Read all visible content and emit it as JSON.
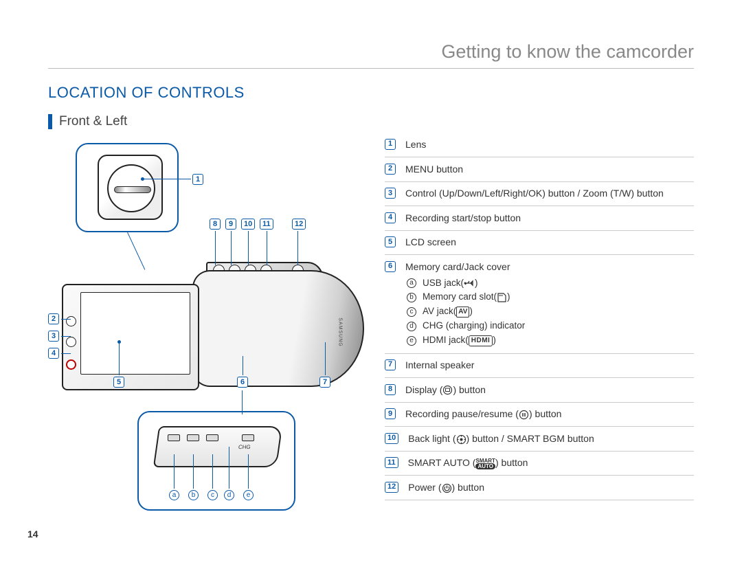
{
  "page_number": "14",
  "chapter_title": "Getting to know the camcorder",
  "section_title": "LOCATION OF CONTROLS",
  "subsection_title": "Front & Left",
  "colors": {
    "accent": "#0b5aa8",
    "text": "#333333",
    "muted": "#888888",
    "rule": "#cccccc",
    "bg": "#ffffff"
  },
  "legend": [
    {
      "num": "1",
      "text": "Lens"
    },
    {
      "num": "2",
      "text": "MENU button"
    },
    {
      "num": "3",
      "text": "Control (Up/Down/Left/Right/OK) button / Zoom (T/W) button"
    },
    {
      "num": "4",
      "text": "Recording start/stop button"
    },
    {
      "num": "5",
      "text": "LCD screen"
    },
    {
      "num": "6",
      "text": "Memory card/Jack cover",
      "sub": [
        {
          "letter": "a",
          "text": "USB jack",
          "icon": "usb"
        },
        {
          "letter": "b",
          "text": "Memory card slot",
          "icon": "sd"
        },
        {
          "letter": "c",
          "text": "AV jack",
          "icon": "av"
        },
        {
          "letter": "d",
          "text": "CHG (charging) indicator"
        },
        {
          "letter": "e",
          "text": "HDMI jack",
          "icon": "hdmi"
        }
      ]
    },
    {
      "num": "7",
      "text": "Internal speaker"
    },
    {
      "num": "8",
      "text": "Display",
      "icon": "display-ring",
      "suffix": " button"
    },
    {
      "num": "9",
      "text": "Recording pause/resume",
      "icon": "pause-ring",
      "suffix": " button"
    },
    {
      "num": "10",
      "text": "Back light",
      "icon": "backlight-ring",
      "suffix": " button / SMART BGM button"
    },
    {
      "num": "11",
      "text": "SMART AUTO",
      "icon": "smart-auto",
      "suffix": " button"
    },
    {
      "num": "12",
      "text": "Power",
      "icon": "power-ring",
      "suffix": " button"
    }
  ],
  "diagram": {
    "top_row_nums": [
      "8",
      "9",
      "10",
      "11",
      "12"
    ],
    "left_nums": [
      "2",
      "3",
      "4"
    ],
    "bottom_nums": [
      "5",
      "6",
      "7"
    ],
    "lens_num": "1",
    "jack_letters": [
      "a",
      "b",
      "c",
      "d",
      "e"
    ],
    "chg_label": "CHG",
    "brand_label": "SAMSUNG"
  }
}
